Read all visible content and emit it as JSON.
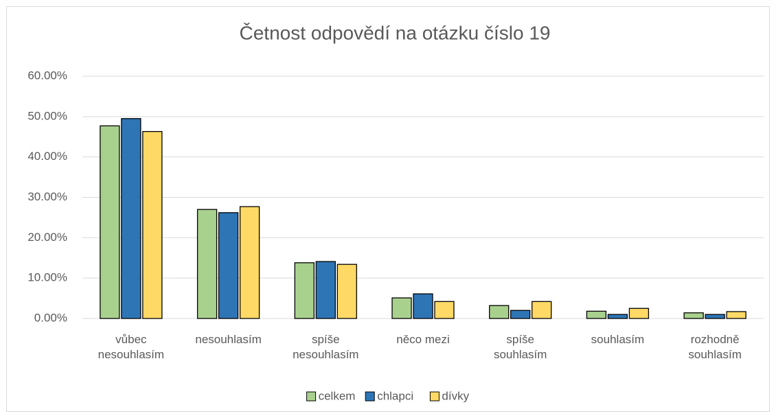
{
  "chart_data": {
    "type": "bar",
    "title": "Četnost odpovědí na otázku číslo 19",
    "categories": [
      "vůbec\nnesouhlasím",
      "nesouhlasím",
      "spíše\nnesouhlasím",
      "něco mezi",
      "spíše\nsouhlasím",
      "souhlasím",
      "rozhodně\nsouhlasím"
    ],
    "series": [
      {
        "name": "celkem",
        "color": "#a9d18e",
        "values": [
          47.7,
          27.0,
          13.8,
          5.1,
          3.2,
          1.8,
          1.4
        ]
      },
      {
        "name": "chlapci",
        "color": "#2e75b6",
        "values": [
          49.5,
          26.2,
          14.1,
          6.1,
          2.0,
          1.0,
          1.0
        ]
      },
      {
        "name": "dívky",
        "color": "#ffd966",
        "values": [
          46.3,
          27.7,
          13.4,
          4.2,
          4.2,
          2.5,
          1.7
        ]
      }
    ],
    "ylim": [
      0,
      60
    ],
    "yticks": [
      {
        "value": 0,
        "label": "0.00%"
      },
      {
        "value": 10,
        "label": "10.00%"
      },
      {
        "value": 20,
        "label": "20.00%"
      },
      {
        "value": 30,
        "label": "30.00%"
      },
      {
        "value": 40,
        "label": "40.00%"
      },
      {
        "value": 50,
        "label": "50.00%"
      },
      {
        "value": 60,
        "label": "60.00%"
      }
    ],
    "grid": true,
    "legend": "bottom"
  }
}
